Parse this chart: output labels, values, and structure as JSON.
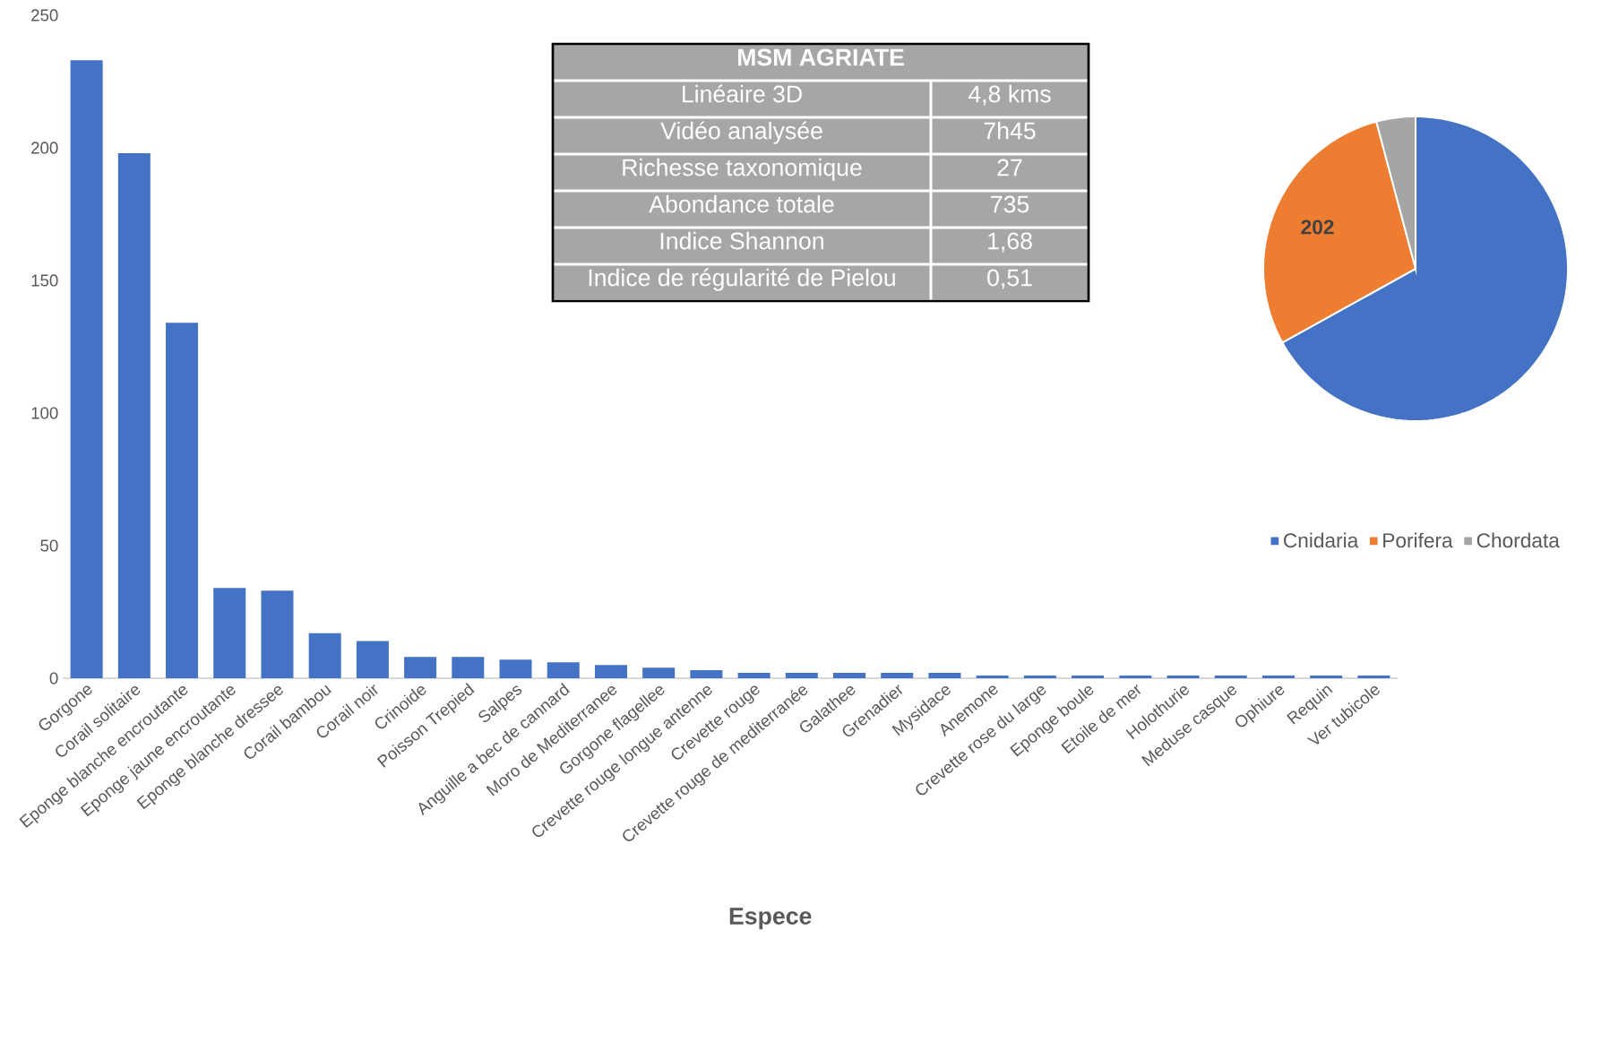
{
  "chart_data": [
    {
      "type": "bar",
      "xlabel": "Espece",
      "categories": [
        "Gorgone",
        "Corail solitaire",
        "Eponge blanche encroutante",
        "Eponge jaune encroutante",
        "Eponge blanche dressee",
        "Corail bambou",
        "Corail noir",
        "Crinoide",
        "Poisson Trepied",
        "Salpes",
        "Anguille a bec de cannard",
        "Moro de Mediterranee",
        "Gorgone flagellee",
        "Crevette rouge longue antenne",
        "Crevette rouge",
        "Crevette rouge de mediterranée",
        "Galathee",
        "Grenadier",
        "Mysidace",
        "Anemone",
        "Crevette rose du large",
        "Eponge boule",
        "Etoile de mer",
        "Holothurie",
        "Meduse casque",
        "Ophiure",
        "Requin",
        "Ver tubicole"
      ],
      "values": [
        233,
        198,
        134,
        34,
        33,
        17,
        14,
        8,
        8,
        7,
        6,
        5,
        4,
        3,
        2,
        2,
        2,
        2,
        2,
        1,
        1,
        1,
        1,
        1,
        1,
        1,
        1,
        1
      ],
      "color": "#4472c4",
      "ylim": [
        0,
        250
      ],
      "yticks": [
        0,
        50,
        100,
        150,
        200,
        250
      ],
      "annotations": [
        "MSM AGRIATE",
        "Linéaire 3D",
        "4,8 kms",
        "Vidéo analysée",
        "7h45",
        "Richesse taxonomique",
        "27",
        "Abondance totale",
        "735",
        "Indice Shannon",
        "1,68",
        "Indice de régularité de Pielou",
        "0,51"
      ]
    },
    {
      "type": "pie",
      "categories": [
        "Cnidaria",
        "Porifera",
        "Chordata"
      ],
      "values": [
        468,
        202,
        29
      ],
      "colors": [
        "#4472c4",
        "#ed7d31",
        "#a5a5a5"
      ],
      "value_labels": [
        null,
        "202",
        null
      ],
      "legend": "bottom"
    }
  ]
}
